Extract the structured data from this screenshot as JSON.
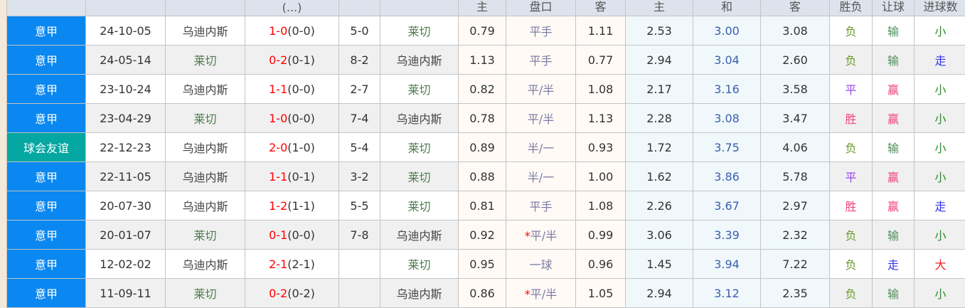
{
  "header": {
    "columns": [
      "",
      "",
      "",
      "(...)",
      "",
      "",
      "主",
      "盘口",
      "客",
      "主",
      "和",
      "客",
      "胜负",
      "让球",
      "进球数"
    ]
  },
  "colors": {
    "league": "#0a87f0",
    "friendly": "#04a7a1",
    "score": "#ff0000"
  },
  "rows": [
    {
      "league": "意甲",
      "friendly": false,
      "date": "24-10-05",
      "home": "乌迪内斯",
      "home_team": "u",
      "ft": "1-0",
      "ht": "(0-0)",
      "corner": "5-0",
      "away": "莱切",
      "away_team": "l",
      "ah_home": "0.79",
      "star": "",
      "hcp": "平手",
      "ah_away": "1.11",
      "w": "2.53",
      "d": "3.00",
      "l": "3.08",
      "res": "负",
      "res_cls": "r-loss",
      "hres": "输",
      "hres_cls": "r-lose2",
      "gres": "小",
      "gres_cls": "r-small"
    },
    {
      "league": "意甲",
      "friendly": false,
      "date": "24-05-14",
      "home": "莱切",
      "home_team": "l",
      "ft": "0-2",
      "ht": "(0-1)",
      "corner": "8-2",
      "away": "乌迪内斯",
      "away_team": "u",
      "ah_home": "1.13",
      "star": "",
      "hcp": "平手",
      "ah_away": "0.77",
      "w": "2.94",
      "d": "3.04",
      "l": "2.60",
      "res": "负",
      "res_cls": "r-loss",
      "hres": "输",
      "hres_cls": "r-lose2",
      "gres": "走",
      "gres_cls": "r-push"
    },
    {
      "league": "意甲",
      "friendly": false,
      "date": "23-10-24",
      "home": "乌迪内斯",
      "home_team": "u",
      "ft": "1-1",
      "ht": "(0-0)",
      "corner": "2-7",
      "away": "莱切",
      "away_team": "l",
      "ah_home": "0.82",
      "star": "",
      "hcp": "平/半",
      "ah_away": "1.08",
      "w": "2.17",
      "d": "3.16",
      "l": "3.58",
      "res": "平",
      "res_cls": "r-draw",
      "hres": "赢",
      "hres_cls": "r-win",
      "gres": "小",
      "gres_cls": "r-small"
    },
    {
      "league": "意甲",
      "friendly": false,
      "date": "23-04-29",
      "home": "莱切",
      "home_team": "l",
      "ft": "1-0",
      "ht": "(0-0)",
      "corner": "7-4",
      "away": "乌迪内斯",
      "away_team": "u",
      "ah_home": "0.78",
      "star": "",
      "hcp": "平/半",
      "ah_away": "1.13",
      "w": "2.28",
      "d": "3.08",
      "l": "3.47",
      "res": "胜",
      "res_cls": "r-win",
      "hres": "赢",
      "hres_cls": "r-win",
      "gres": "小",
      "gres_cls": "r-small"
    },
    {
      "league": "球会友谊",
      "friendly": true,
      "date": "22-12-23",
      "home": "乌迪内斯",
      "home_team": "u",
      "ft": "2-0",
      "ht": "(1-0)",
      "corner": "5-4",
      "away": "莱切",
      "away_team": "l",
      "ah_home": "0.89",
      "star": "",
      "hcp": "半/一",
      "ah_away": "0.93",
      "w": "1.72",
      "d": "3.75",
      "l": "4.06",
      "res": "负",
      "res_cls": "r-loss",
      "hres": "输",
      "hres_cls": "r-lose2",
      "gres": "小",
      "gres_cls": "r-small"
    },
    {
      "league": "意甲",
      "friendly": false,
      "date": "22-11-05",
      "home": "乌迪内斯",
      "home_team": "u",
      "ft": "1-1",
      "ht": "(0-1)",
      "corner": "3-2",
      "away": "莱切",
      "away_team": "l",
      "ah_home": "0.88",
      "star": "",
      "hcp": "半/一",
      "ah_away": "1.00",
      "w": "1.62",
      "d": "3.86",
      "l": "5.78",
      "res": "平",
      "res_cls": "r-draw",
      "hres": "赢",
      "hres_cls": "r-win",
      "gres": "小",
      "gres_cls": "r-small"
    },
    {
      "league": "意甲",
      "friendly": false,
      "date": "20-07-30",
      "home": "乌迪内斯",
      "home_team": "u",
      "ft": "1-2",
      "ht": "(1-1)",
      "corner": "5-5",
      "away": "莱切",
      "away_team": "l",
      "ah_home": "0.81",
      "star": "",
      "hcp": "平手",
      "ah_away": "1.08",
      "w": "2.26",
      "d": "3.67",
      "l": "2.97",
      "res": "胜",
      "res_cls": "r-win",
      "hres": "赢",
      "hres_cls": "r-win",
      "gres": "走",
      "gres_cls": "r-push"
    },
    {
      "league": "意甲",
      "friendly": false,
      "date": "20-01-07",
      "home": "莱切",
      "home_team": "l",
      "ft": "0-1",
      "ht": "(0-0)",
      "corner": "7-8",
      "away": "乌迪内斯",
      "away_team": "u",
      "ah_home": "0.92",
      "star": "*",
      "hcp": "平/半",
      "ah_away": "0.99",
      "w": "3.06",
      "d": "3.39",
      "l": "2.32",
      "res": "负",
      "res_cls": "r-loss",
      "hres": "输",
      "hres_cls": "r-lose2",
      "gres": "小",
      "gres_cls": "r-small"
    },
    {
      "league": "意甲",
      "friendly": false,
      "date": "12-02-02",
      "home": "乌迪内斯",
      "home_team": "u",
      "ft": "2-1",
      "ht": "(2-1)",
      "corner": "",
      "away": "莱切",
      "away_team": "l",
      "ah_home": "0.95",
      "star": "",
      "hcp": "一球",
      "ah_away": "0.96",
      "w": "1.45",
      "d": "3.94",
      "l": "7.22",
      "res": "负",
      "res_cls": "r-loss",
      "hres": "走",
      "hres_cls": "r-push",
      "gres": "大",
      "gres_cls": "r-big"
    },
    {
      "league": "意甲",
      "friendly": false,
      "date": "11-09-11",
      "home": "莱切",
      "home_team": "l",
      "ft": "0-2",
      "ht": "(0-2)",
      "corner": "",
      "away": "乌迪内斯",
      "away_team": "u",
      "ah_home": "0.86",
      "star": "*",
      "hcp": "平/半",
      "ah_away": "1.05",
      "w": "2.94",
      "d": "3.12",
      "l": "2.35",
      "res": "负",
      "res_cls": "r-loss",
      "hres": "输",
      "hres_cls": "r-lose2",
      "gres": "小",
      "gres_cls": "r-small"
    }
  ]
}
